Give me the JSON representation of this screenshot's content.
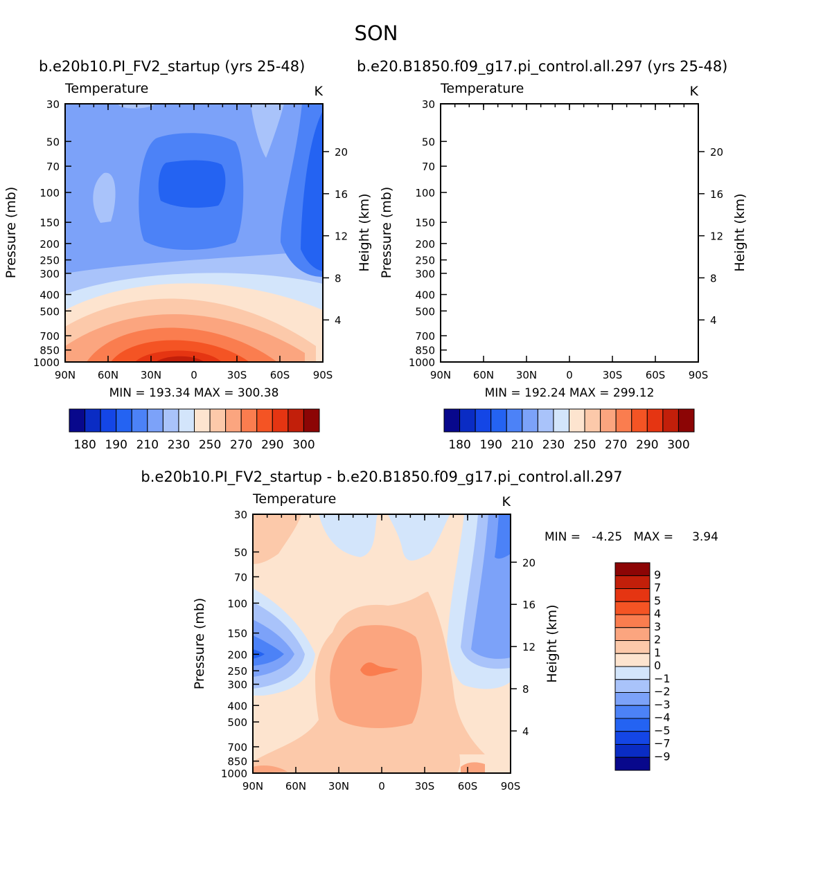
{
  "figure": {
    "title": "SON",
    "left_header": "b.e20b10.PI_FV2_startup (yrs 25-48)",
    "right_header": "b.e20.B1850.f09_g17.pi_control.all.297 (yrs 25-48)",
    "diff_header": "b.e20b10.PI_FV2_startup - b.e20.B1850.f09_g17.pi_control.all.297"
  },
  "chart_data": [
    {
      "type": "heatmap",
      "id": "left",
      "title": "Temperature",
      "units": "K",
      "xlabel": "",
      "ylabel": "Pressure (mb)",
      "y2label": "Height (km)",
      "x_ticks": [
        "90N",
        "60N",
        "30N",
        "0",
        "30S",
        "60S",
        "90S"
      ],
      "y_ticks": [
        "30",
        "50",
        "70",
        "100",
        "150",
        "200",
        "250",
        "300",
        "400",
        "500",
        "700",
        "850",
        "1000"
      ],
      "y2_ticks": [
        "20",
        "16",
        "12",
        "8",
        "4"
      ],
      "stats": "MIN = 193.34   MAX = 300.38",
      "min": 193.34,
      "max": 300.38,
      "colorbar_labels": [
        "180",
        "190",
        "210",
        "230",
        "250",
        "270",
        "290",
        "300"
      ],
      "levels": [
        180,
        185,
        190,
        200,
        210,
        220,
        230,
        240,
        250,
        260,
        270,
        280,
        290,
        295,
        300
      ]
    },
    {
      "type": "heatmap",
      "id": "right",
      "title": "Temperature",
      "units": "K",
      "xlabel": "",
      "ylabel": "Pressure (mb)",
      "y2label": "Height (km)",
      "x_ticks": [
        "90N",
        "60N",
        "30N",
        "0",
        "30S",
        "60S",
        "90S"
      ],
      "y_ticks": [
        "30",
        "50",
        "70",
        "100",
        "150",
        "200",
        "250",
        "300",
        "400",
        "500",
        "700",
        "850",
        "1000"
      ],
      "y2_ticks": [
        "20",
        "16",
        "12",
        "8",
        "4"
      ],
      "stats": "MIN = 192.24   MAX = 299.12",
      "min": 192.24,
      "max": 299.12,
      "colorbar_labels": [
        "180",
        "190",
        "210",
        "230",
        "250",
        "270",
        "290",
        "300"
      ],
      "levels": [
        180,
        185,
        190,
        200,
        210,
        220,
        230,
        240,
        250,
        260,
        270,
        280,
        290,
        295,
        300
      ]
    },
    {
      "type": "heatmap",
      "id": "diff",
      "title": "Temperature",
      "units": "K",
      "xlabel": "",
      "ylabel": "Pressure (mb)",
      "y2label": "Height (km)",
      "x_ticks": [
        "90N",
        "60N",
        "30N",
        "0",
        "30S",
        "60S",
        "90S"
      ],
      "y_ticks": [
        "30",
        "50",
        "70",
        "100",
        "150",
        "200",
        "250",
        "300",
        "400",
        "500",
        "700",
        "850",
        "1000"
      ],
      "y2_ticks": [
        "20",
        "16",
        "12",
        "8",
        "4"
      ],
      "stats": "MIN =   -4.25   MAX =     3.94",
      "min": -4.25,
      "max": 3.94,
      "colorbar_labels": [
        "9",
        "7",
        "5",
        "4",
        "3",
        "2",
        "1",
        "0",
        "-1",
        "-2",
        "-3",
        "-4",
        "-5",
        "-7",
        "-9"
      ],
      "levels": [
        9,
        7,
        5,
        4,
        3,
        2,
        1,
        0,
        -1,
        -2,
        -3,
        -4,
        -5,
        -7,
        -9
      ]
    }
  ],
  "palette": [
    "#08088c",
    "#0a2cc4",
    "#1446e6",
    "#2463f2",
    "#4c82f7",
    "#7ca2f9",
    "#a9c3fa",
    "#d3e5fb",
    "#fde4cf",
    "#fcc9aa",
    "#fba57f",
    "#fa7d4f",
    "#f45424",
    "#e53512",
    "#c21f0a",
    "#8c0505"
  ],
  "diff_palette": [
    "#8c0505",
    "#c21f0a",
    "#e53512",
    "#f45424",
    "#fa7d4f",
    "#fba57f",
    "#fcc9aa",
    "#fde4cf",
    "#d3e5fb",
    "#a9c3fa",
    "#7ca2f9",
    "#4c82f7",
    "#2463f2",
    "#1446e6",
    "#0a2cc4",
    "#08088c"
  ]
}
